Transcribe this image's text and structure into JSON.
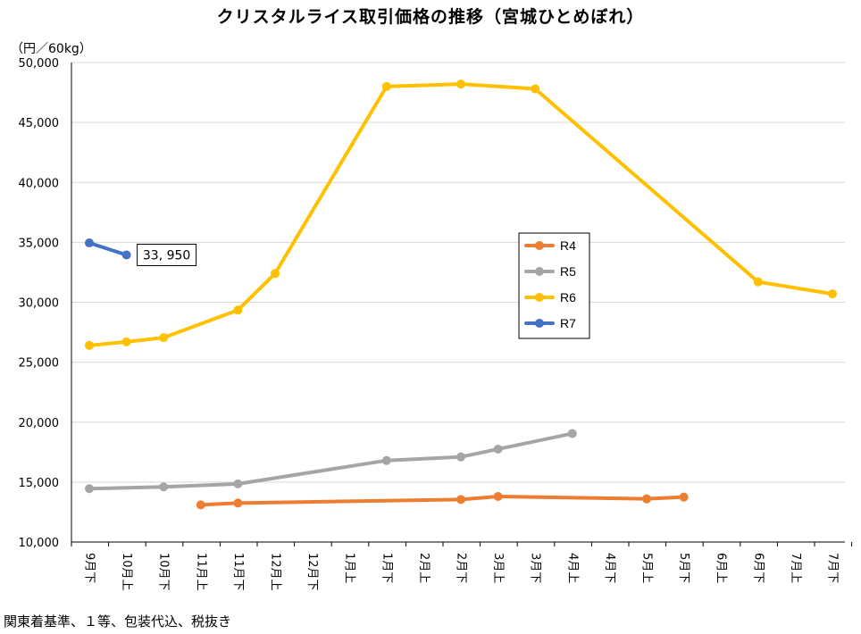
{
  "chart_data": {
    "type": "line",
    "title": "クリスタルライス取引価格の推移（宮城ひとめぼれ）",
    "unit_label": "（円／60kg）",
    "footnote": "関東着基準、１等、包装代込、税抜き",
    "ylim": [
      10000,
      50000
    ],
    "yticks": [
      10000,
      15000,
      20000,
      25000,
      30000,
      35000,
      40000,
      45000,
      50000
    ],
    "ytick_labels": [
      "10,000",
      "15,000",
      "20,000",
      "25,000",
      "30,000",
      "35,000",
      "40,000",
      "45,000",
      "50,000"
    ],
    "grid": "horizontal",
    "legend_position": "center-right",
    "categories": [
      "9月下",
      "10月上",
      "10月下",
      "11月上",
      "11月下",
      "12月上",
      "12月下",
      "1月上",
      "1月下",
      "2月上",
      "2月下",
      "3月上",
      "3月下",
      "4月上",
      "4月下",
      "5月上",
      "5月下",
      "6月上",
      "6月下",
      "7月上",
      "7月下"
    ],
    "series": [
      {
        "name": "R4",
        "color": "#ED7D31",
        "values": [
          null,
          null,
          null,
          13100,
          13250,
          null,
          null,
          null,
          null,
          null,
          13550,
          13800,
          null,
          null,
          null,
          13600,
          13750,
          null,
          null,
          null,
          null
        ]
      },
      {
        "name": "R5",
        "color": "#A5A5A5",
        "values": [
          14450,
          null,
          14600,
          null,
          14850,
          null,
          null,
          null,
          16800,
          null,
          17100,
          17750,
          null,
          19050,
          null,
          null,
          null,
          null,
          null,
          null,
          null
        ]
      },
      {
        "name": "R6",
        "color": "#FFC000",
        "values": [
          26400,
          26700,
          27050,
          null,
          29350,
          32400,
          null,
          null,
          48000,
          null,
          48200,
          null,
          47800,
          null,
          null,
          null,
          null,
          null,
          31700,
          null,
          30700
        ]
      },
      {
        "name": "R7",
        "color": "#4472C4",
        "values": [
          34950,
          33950,
          null,
          null,
          null,
          null,
          null,
          null,
          null,
          null,
          null,
          null,
          null,
          null,
          null,
          null,
          null,
          null,
          null,
          null,
          null
        ]
      }
    ],
    "annotations": [
      {
        "series": "R7",
        "category": "10月上",
        "text": "33, 950"
      }
    ]
  }
}
